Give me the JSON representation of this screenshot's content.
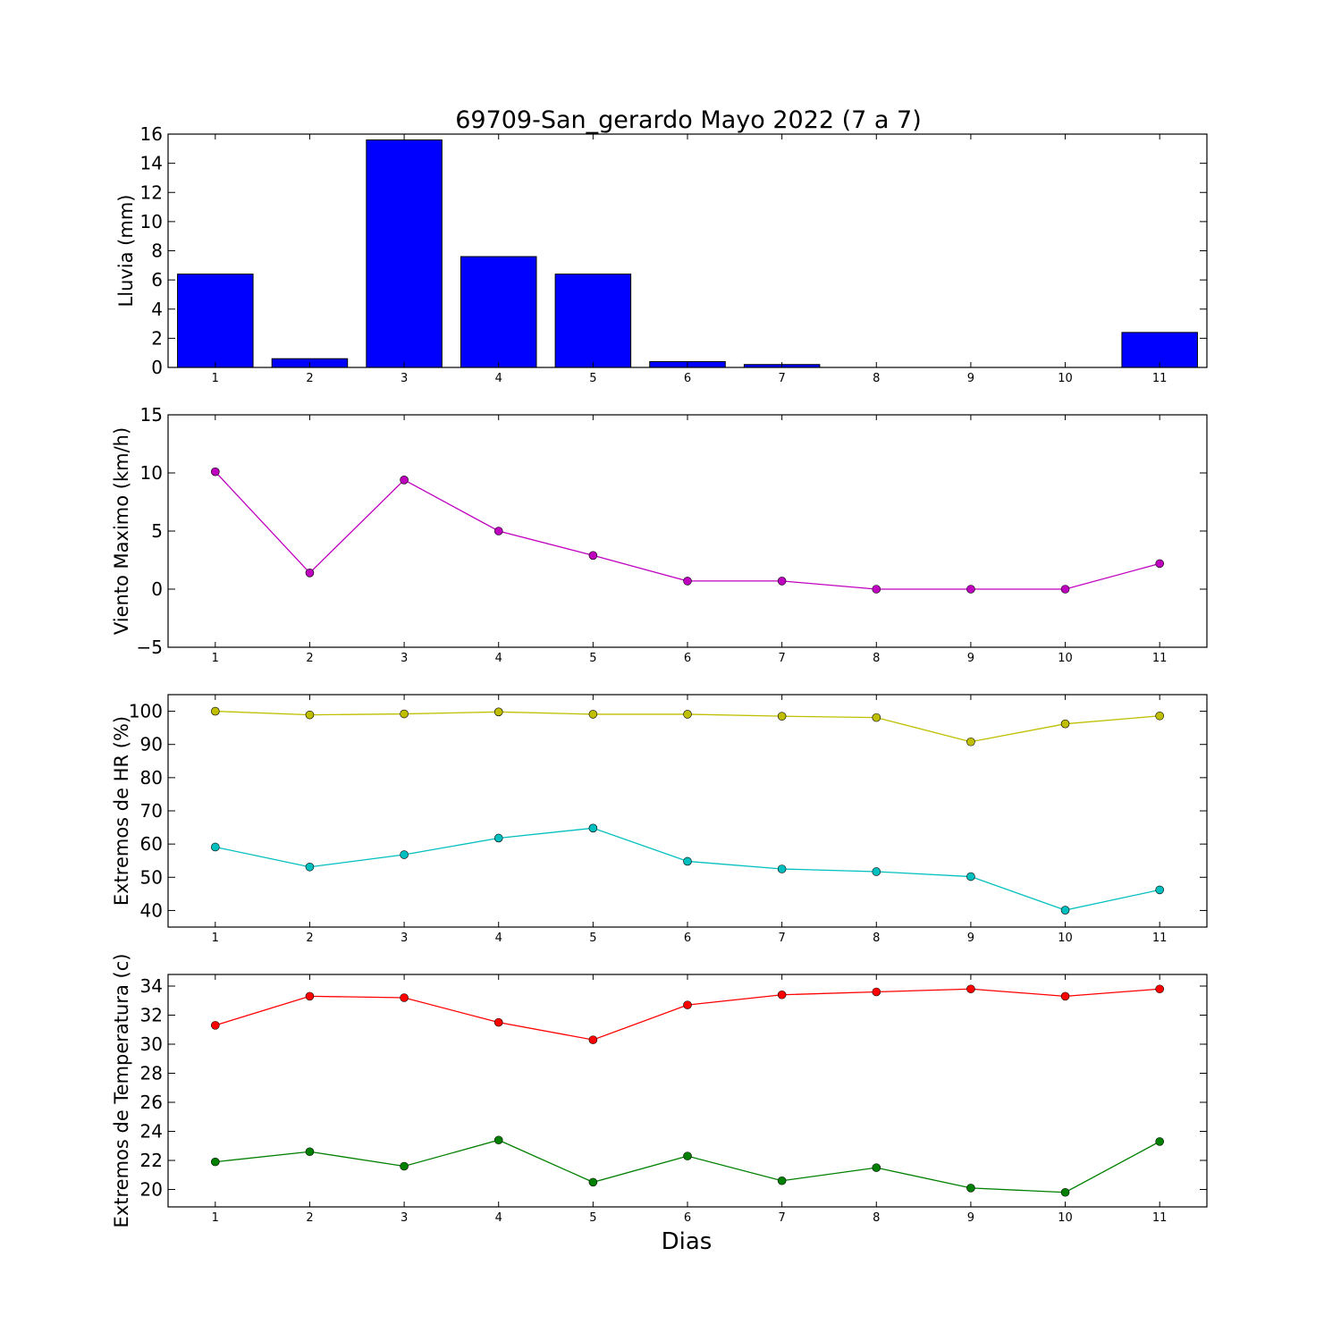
{
  "title": "69709-San_gerardo Mayo 2022  (7 a 7)",
  "xlabel": "Dias",
  "colors": {
    "rain_bar": "#0000ff",
    "wind_line": "#bf00bf",
    "hr_max": "#bfbf00",
    "hr_min": "#00bfbf",
    "temp_max": "#ff0000",
    "temp_min": "#008000"
  },
  "chart_data": [
    {
      "type": "bar",
      "ylabel": "Lluvia (mm)",
      "categories": [
        1,
        2,
        3,
        4,
        5,
        6,
        7,
        8,
        9,
        10,
        11
      ],
      "values": [
        6.4,
        0.6,
        15.6,
        7.6,
        6.4,
        0.4,
        0.2,
        0,
        0,
        0,
        2.4
      ],
      "xlim": [
        0.5,
        11.5
      ],
      "ylim": [
        0,
        16
      ],
      "yticks": [
        0,
        2,
        4,
        6,
        8,
        10,
        12,
        14,
        16
      ],
      "xticks": [
        1,
        2,
        3,
        4,
        5,
        6,
        7,
        8,
        9,
        10,
        11
      ]
    },
    {
      "type": "line",
      "ylabel": "Viento Maximo (km/h)",
      "x": [
        1,
        2,
        3,
        4,
        5,
        6,
        7,
        8,
        9,
        10,
        11
      ],
      "series": [
        {
          "values": [
            10.1,
            1.4,
            9.4,
            5.0,
            2.9,
            0.7,
            0.7,
            0,
            0,
            0,
            2.2
          ],
          "color": "#bf00bf"
        }
      ],
      "xlim": [
        0.5,
        11.5
      ],
      "ylim": [
        -5,
        15
      ],
      "yticks": [
        -5,
        0,
        5,
        10,
        15
      ],
      "ytick_labels": [
        "−5",
        "0",
        "5",
        "10",
        "15"
      ],
      "xticks": [
        1,
        2,
        3,
        4,
        5,
        6,
        7,
        8,
        9,
        10,
        11
      ]
    },
    {
      "type": "line",
      "ylabel": "Extremos de HR (%)",
      "x": [
        1,
        2,
        3,
        4,
        5,
        6,
        7,
        8,
        9,
        10,
        11
      ],
      "series": [
        {
          "values": [
            100,
            98.9,
            99.2,
            99.8,
            99.1,
            99.1,
            98.5,
            98.1,
            90.8,
            96.2,
            98.6
          ],
          "color": "#bfbf00"
        },
        {
          "values": [
            59.1,
            53.1,
            56.8,
            61.8,
            64.8,
            54.8,
            52.5,
            51.7,
            50.2,
            40.1,
            46.2
          ],
          "color": "#00bfbf"
        }
      ],
      "xlim": [
        0.5,
        11.5
      ],
      "ylim": [
        35,
        105
      ],
      "yticks": [
        40,
        50,
        60,
        70,
        80,
        90,
        100
      ],
      "xticks": [
        1,
        2,
        3,
        4,
        5,
        6,
        7,
        8,
        9,
        10,
        11
      ]
    },
    {
      "type": "line",
      "ylabel": "Extremos de Temperatura (c)",
      "x": [
        1,
        2,
        3,
        4,
        5,
        6,
        7,
        8,
        9,
        10,
        11
      ],
      "series": [
        {
          "values": [
            31.3,
            33.3,
            33.2,
            31.5,
            30.3,
            32.7,
            33.4,
            33.6,
            33.8,
            33.3,
            33.8
          ],
          "color": "#ff0000"
        },
        {
          "values": [
            21.9,
            22.6,
            21.6,
            23.4,
            20.5,
            22.3,
            20.6,
            21.5,
            20.1,
            19.8,
            23.3
          ],
          "color": "#008000"
        }
      ],
      "xlim": [
        0.5,
        11.5
      ],
      "ylim": [
        18.8,
        34.8
      ],
      "yticks": [
        20,
        22,
        24,
        26,
        28,
        30,
        32,
        34
      ],
      "xticks": [
        1,
        2,
        3,
        4,
        5,
        6,
        7,
        8,
        9,
        10,
        11
      ]
    }
  ]
}
